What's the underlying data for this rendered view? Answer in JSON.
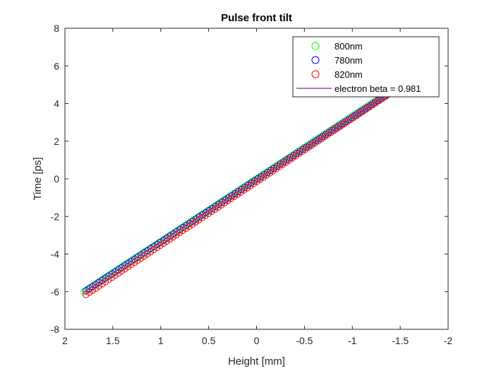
{
  "chart_data": {
    "type": "scatter",
    "title": "Pulse front tilt",
    "xlabel": "Height [mm]",
    "ylabel": "Time [ps]",
    "xlim": [
      2,
      -2
    ],
    "x_reversed": true,
    "ylim": [
      -8,
      8
    ],
    "xticks": [
      "2",
      "1.5",
      "1",
      "0.5",
      "0",
      "-0.5",
      "-1",
      "-1.5",
      "-2"
    ],
    "yticks": [
      "-8",
      "-6",
      "-4",
      "-2",
      "0",
      "2",
      "4",
      "6",
      "8"
    ],
    "grid": false,
    "legend_placement": "top-right",
    "series": [
      {
        "name": "800nm",
        "marker": "circle",
        "color": "#00ff00",
        "x_start": 1.8,
        "x_end": -1.38,
        "y_start": -6.0,
        "y_end": 4.6,
        "points": 95
      },
      {
        "name": "780nm",
        "marker": "circle",
        "color": "#0000ff",
        "x_start": 1.78,
        "x_end": -1.4,
        "y_start": -5.95,
        "y_end": 4.6,
        "points": 95
      },
      {
        "name": "820nm",
        "marker": "circle",
        "color": "#ff0000",
        "x_start": 1.78,
        "x_end": -1.38,
        "y_start": -6.15,
        "y_end": 4.5,
        "points": 95
      },
      {
        "name": "electron beta = 0.981",
        "marker": "line",
        "color": "#7e2f8e",
        "x_start": 1.8,
        "x_end": -1.45,
        "y_start": -6.0,
        "y_end": 4.75
      }
    ]
  }
}
